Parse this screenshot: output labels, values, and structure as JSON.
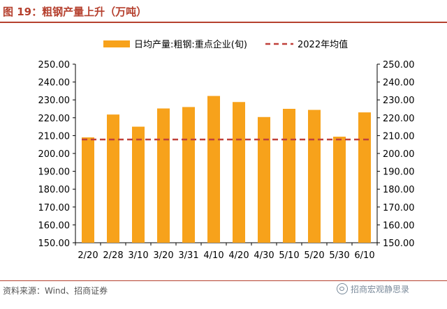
{
  "header": {
    "title": "图 19：粗钢产量上升（万吨）"
  },
  "footer": {
    "source": "资料来源：Wind、招商证券",
    "watermark": "招商宏观静思录"
  },
  "chart_data": {
    "type": "bar",
    "categories": [
      "2/20",
      "2/28",
      "3/10",
      "3/20",
      "3/31",
      "4/10",
      "4/20",
      "4/30",
      "5/10",
      "5/20",
      "5/30",
      "6/10"
    ],
    "series": [
      {
        "name": "日均产量:粗钢:重点企业(旬)",
        "type": "bar",
        "color": "#f7a21b",
        "values": [
          209.0,
          221.8,
          215.0,
          225.2,
          226.0,
          232.2,
          228.8,
          220.4,
          225.0,
          224.4,
          209.4,
          223.0
        ]
      },
      {
        "name": "2022年均值",
        "type": "line",
        "style": "dashed",
        "color": "#c0413a",
        "values": [
          207.8,
          207.8,
          207.8,
          207.8,
          207.8,
          207.8,
          207.8,
          207.8,
          207.8,
          207.8,
          207.8,
          207.8
        ]
      }
    ],
    "ylim": [
      150,
      250
    ],
    "yticks": [
      "150.00",
      "160.00",
      "170.00",
      "180.00",
      "190.00",
      "200.00",
      "210.00",
      "220.00",
      "230.00",
      "240.00",
      "250.00"
    ],
    "y_axes": "left-and-right",
    "grid": false,
    "legend": "top"
  }
}
